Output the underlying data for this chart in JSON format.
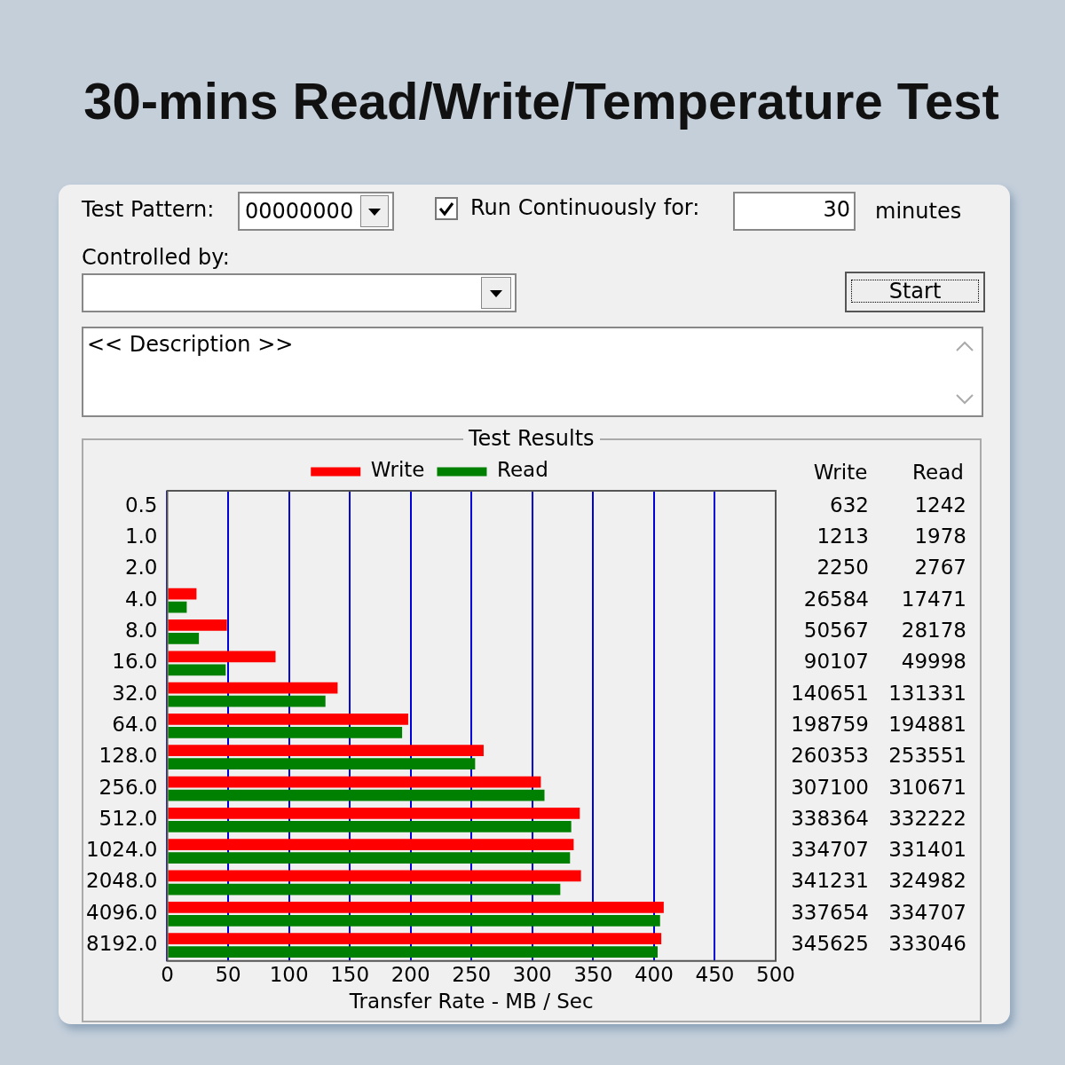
{
  "chart_data": {
    "type": "bar",
    "orientation": "horizontal",
    "title": "30-mins Read/Write/Temperature Test",
    "subtitle": "Test Results",
    "xlabel": "Transfer Rate - MB / Sec",
    "categories": [
      "0.5",
      "1.0",
      "2.0",
      "4.0",
      "8.0",
      "16.0",
      "32.0",
      "64.0",
      "128.0",
      "256.0",
      "512.0",
      "1024.0",
      "2048.0",
      "4096.0",
      "8192.0"
    ],
    "series": [
      {
        "name": "Write",
        "color": "#ff0000",
        "values": [
          0,
          0,
          0,
          24,
          49,
          89,
          140,
          198,
          260,
          307,
          339,
          334,
          340,
          408,
          406
        ]
      },
      {
        "name": "Read",
        "color": "#008000",
        "values": [
          0,
          0,
          0,
          16,
          26,
          48,
          130,
          193,
          253,
          310,
          332,
          331,
          323,
          405,
          403
        ]
      }
    ],
    "xlim": [
      0,
      500
    ],
    "xticks": [
      0,
      50,
      100,
      150,
      200,
      250,
      300,
      350,
      400,
      450,
      500
    ],
    "grid": "x",
    "legend": "top",
    "annotations": [
      "Test Pattern:",
      "00000000",
      "Run Continuously for:",
      "30",
      "minutes",
      "Controlled by:",
      "Start",
      "<< Description >>",
      "Write",
      "Read",
      "632",
      "1242",
      "1213",
      "1978",
      "2250",
      "2767",
      "26584",
      "17471",
      "50567",
      "28178",
      "90107",
      "49998",
      "140651",
      "131331",
      "198759",
      "194881",
      "260353",
      "253551",
      "307100",
      "310671",
      "338364",
      "332222",
      "334707",
      "331401",
      "341231",
      "324982",
      "337654",
      "334707",
      "345625",
      "333046"
    ]
  }
}
